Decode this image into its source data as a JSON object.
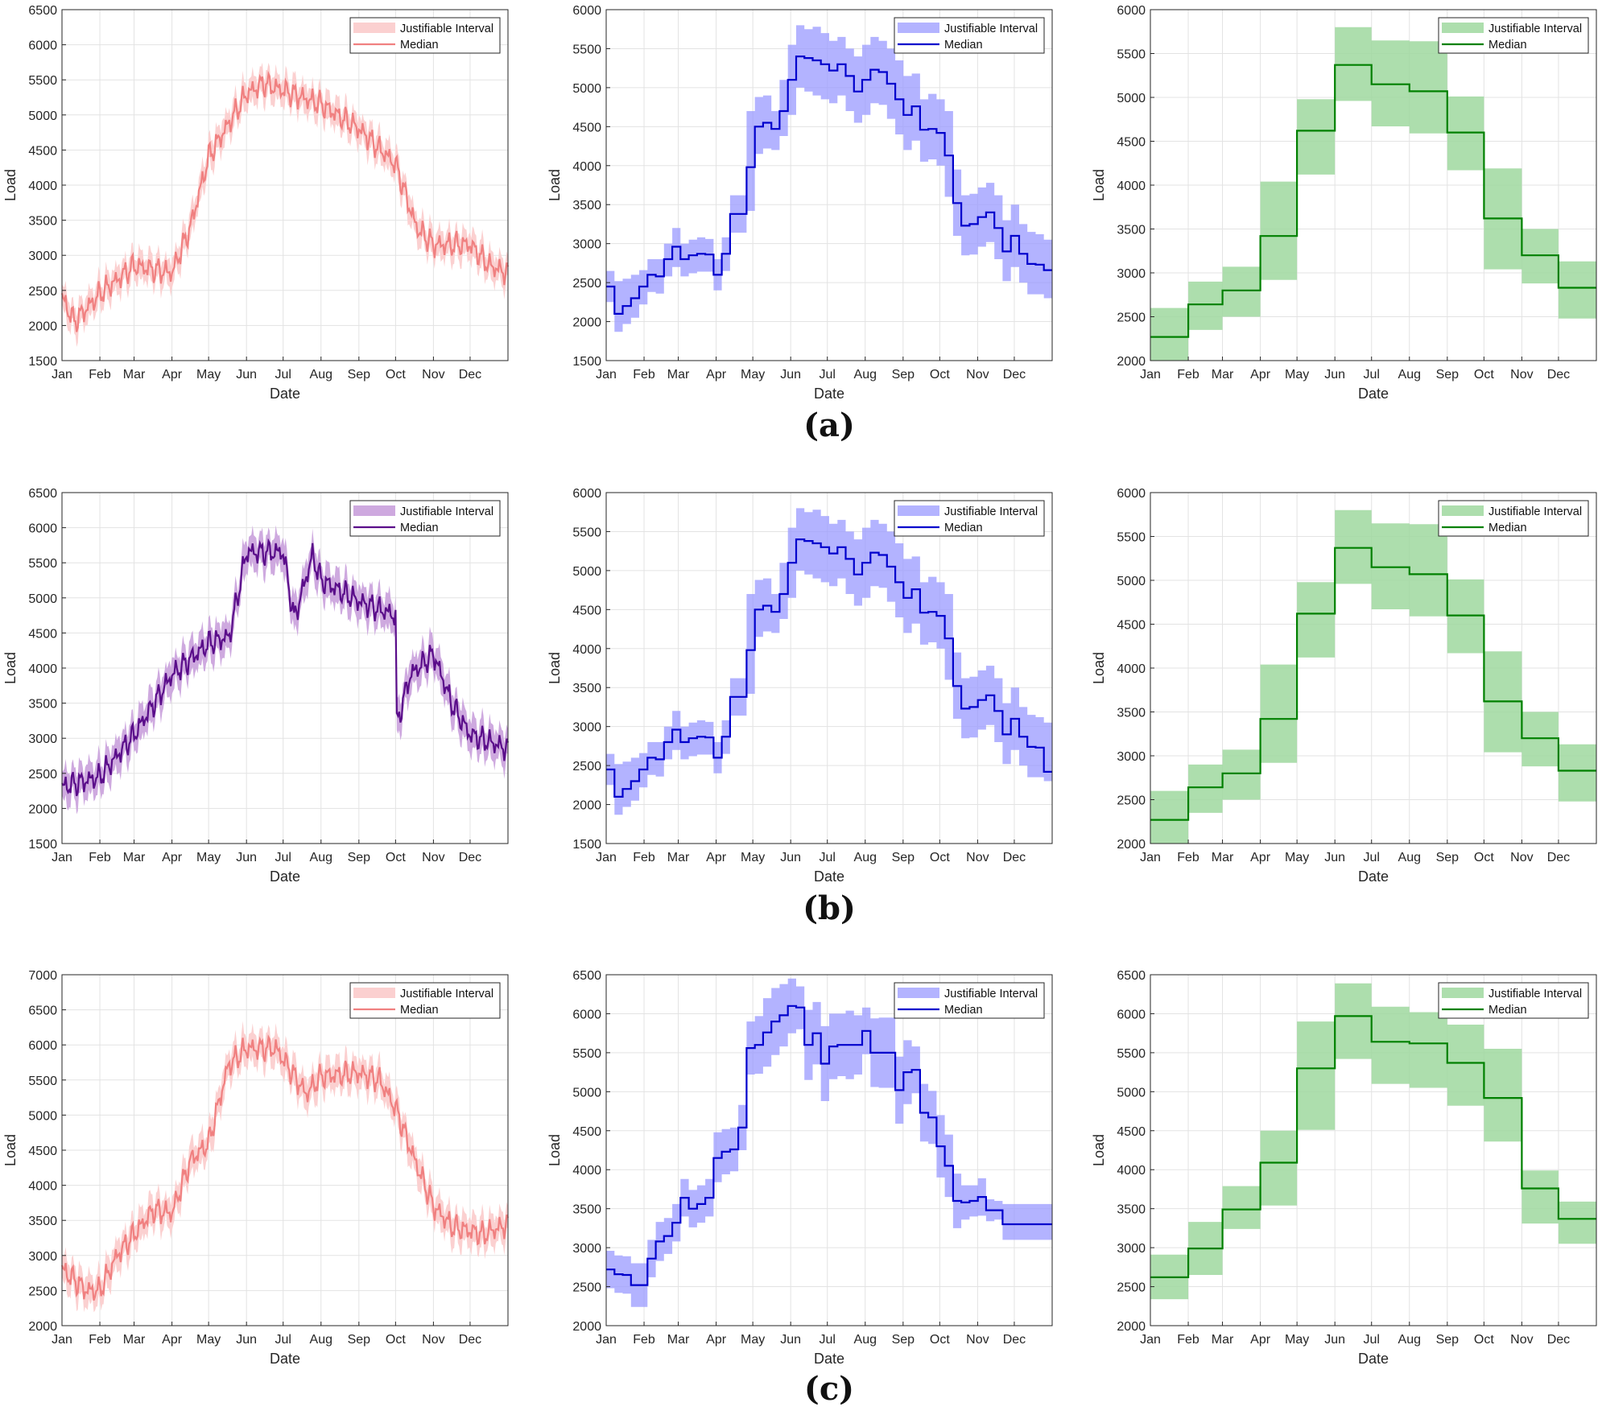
{
  "common": {
    "month_labels": [
      "Jan",
      "Feb",
      "Mar",
      "Apr",
      "May",
      "Jun",
      "Jul",
      "Aug",
      "Sep",
      "Oct",
      "Nov",
      "Dec"
    ],
    "xlabel": "Date",
    "ylabel": "Load",
    "legend_band": "Justifiable Interval",
    "legend_line": "Median",
    "legend_position": "top-right",
    "grid": true
  },
  "captions": [
    "(a)",
    "(b)",
    "(c)"
  ],
  "chart_data": [
    {
      "type": "line",
      "row": 0,
      "col": 0,
      "resolution": "daily",
      "ylim": [
        1500,
        6500
      ],
      "yticks": [
        1500,
        2000,
        2500,
        3000,
        3500,
        4000,
        4500,
        5000,
        5500,
        6000,
        6500
      ],
      "line_color": "#f08080",
      "band_color": "#fbd0d0",
      "band_opacity": 1,
      "median_anchors": [
        [
          0,
          2400
        ],
        [
          10,
          2050
        ],
        [
          31,
          2450
        ],
        [
          59,
          2850
        ],
        [
          90,
          2750
        ],
        [
          105,
          3400
        ],
        [
          120,
          4400
        ],
        [
          151,
          5300
        ],
        [
          165,
          5450
        ],
        [
          181,
          5350
        ],
        [
          212,
          5150
        ],
        [
          243,
          4800
        ],
        [
          273,
          4300
        ],
        [
          290,
          3400
        ],
        [
          304,
          3150
        ],
        [
          334,
          3150
        ],
        [
          350,
          2850
        ],
        [
          365,
          2750
        ]
      ],
      "band_halfwidth": 180
    },
    {
      "type": "line",
      "row": 0,
      "col": 1,
      "resolution": "weekly",
      "ylim": [
        1500,
        6000
      ],
      "yticks": [
        1500,
        2000,
        2500,
        3000,
        3500,
        4000,
        4500,
        5000,
        5500,
        6000
      ],
      "line_color": "#0000cc",
      "band_color": "#9999ff",
      "band_opacity": 0.75,
      "median_weekly": [
        2450,
        2100,
        2200,
        2300,
        2450,
        2600,
        2580,
        2800,
        2960,
        2800,
        2850,
        2870,
        2860,
        2600,
        2870,
        3380,
        3380,
        3980,
        4500,
        4550,
        4470,
        4700,
        5100,
        5400,
        5380,
        5350,
        5300,
        5220,
        5300,
        5150,
        4950,
        5100,
        5230,
        5200,
        5050,
        4850,
        4650,
        4760,
        4460,
        4470,
        4420,
        4130,
        3520,
        3230,
        3250,
        3340,
        3400,
        3200,
        2900,
        3100,
        2870,
        2740,
        2730,
        2660
      ],
      "band_upper": [
        2650,
        2520,
        2550,
        2600,
        2660,
        2800,
        2800,
        3000,
        3200,
        3000,
        3050,
        3080,
        3060,
        2800,
        3080,
        3620,
        3620,
        4700,
        4880,
        4900,
        4700,
        5100,
        5550,
        5800,
        5750,
        5780,
        5700,
        5600,
        5650,
        5500,
        5400,
        5550,
        5650,
        5600,
        5500,
        5350,
        5150,
        5180,
        4850,
        4920,
        4850,
        4700,
        3950,
        3620,
        3640,
        3720,
        3780,
        3620,
        3300,
        3500,
        3250,
        3150,
        3120,
        3050
      ],
      "band_lower": [
        2250,
        1870,
        1970,
        2050,
        2220,
        2380,
        2360,
        2580,
        2700,
        2580,
        2620,
        2640,
        2640,
        2400,
        2650,
        3140,
        3140,
        3420,
        4150,
        4220,
        4200,
        4380,
        4650,
        5000,
        4950,
        4900,
        4850,
        4800,
        4900,
        4700,
        4550,
        4650,
        4800,
        4780,
        4600,
        4400,
        4200,
        4320,
        4050,
        4080,
        4000,
        3600,
        3100,
        2850,
        2860,
        2960,
        3020,
        2800,
        2520,
        2700,
        2500,
        2350,
        2350,
        2300
      ]
    },
    {
      "type": "line",
      "row": 0,
      "col": 2,
      "resolution": "monthly",
      "ylim": [
        2000,
        6000
      ],
      "yticks": [
        2000,
        2500,
        3000,
        3500,
        4000,
        4500,
        5000,
        5500,
        6000
      ],
      "line_color": "#008000",
      "band_color": "#9fd89f",
      "band_opacity": 0.85,
      "median_monthly": [
        2270,
        2640,
        2800,
        3420,
        4620,
        5370,
        5150,
        5070,
        4600,
        3620,
        3200,
        2830
      ],
      "band_upper": [
        2600,
        2900,
        3070,
        4040,
        4980,
        5800,
        5650,
        5640,
        5010,
        4190,
        3500,
        3130
      ],
      "band_lower": [
        1980,
        2350,
        2500,
        2920,
        4120,
        4960,
        4670,
        4590,
        4170,
        3040,
        2880,
        2480
      ]
    },
    {
      "type": "line",
      "row": 1,
      "col": 0,
      "resolution": "daily",
      "ylim": [
        1500,
        6500
      ],
      "yticks": [
        1500,
        2000,
        2500,
        3000,
        3500,
        4000,
        4500,
        5000,
        5500,
        6000,
        6500
      ],
      "line_color": "#5a0d8a",
      "band_color": "#c9a0dc",
      "band_opacity": 0.9,
      "median_anchors": [
        [
          0,
          2300
        ],
        [
          31,
          2450
        ],
        [
          59,
          3050
        ],
        [
          90,
          3900
        ],
        [
          120,
          4350
        ],
        [
          137,
          4450
        ],
        [
          151,
          5650
        ],
        [
          181,
          5650
        ],
        [
          190,
          4700
        ],
        [
          205,
          5600
        ],
        [
          212,
          5250
        ],
        [
          243,
          4950
        ],
        [
          273,
          4750
        ],
        [
          274,
          3200
        ],
        [
          285,
          3900
        ],
        [
          304,
          4200
        ],
        [
          320,
          3450
        ],
        [
          334,
          3050
        ],
        [
          365,
          2850
        ]
      ],
      "band_halfwidth": 220
    },
    {
      "type": "line",
      "row": 1,
      "col": 1,
      "resolution": "weekly",
      "ylim": [
        1500,
        6000
      ],
      "yticks": [
        1500,
        2000,
        2500,
        3000,
        3500,
        4000,
        4500,
        5000,
        5500,
        6000
      ],
      "line_color": "#0000cc",
      "band_color": "#9999ff",
      "band_opacity": 0.75,
      "median_weekly": [
        2450,
        2100,
        2200,
        2300,
        2450,
        2600,
        2580,
        2800,
        2960,
        2800,
        2850,
        2870,
        2860,
        2600,
        2870,
        3380,
        3380,
        3980,
        4500,
        4550,
        4470,
        4700,
        5100,
        5400,
        5380,
        5350,
        5300,
        5220,
        5300,
        5150,
        4950,
        5100,
        5230,
        5200,
        5050,
        4850,
        4650,
        4760,
        4460,
        4470,
        4420,
        4130,
        3520,
        3230,
        3250,
        3340,
        3400,
        3200,
        2900,
        3100,
        2870,
        2740,
        2730,
        2420
      ],
      "band_upper": [
        2650,
        2520,
        2550,
        2600,
        2660,
        2800,
        2800,
        3000,
        3200,
        3000,
        3050,
        3080,
        3060,
        2800,
        3080,
        3620,
        3620,
        4700,
        4880,
        4900,
        4700,
        5100,
        5550,
        5800,
        5750,
        5780,
        5700,
        5600,
        5650,
        5500,
        5400,
        5550,
        5650,
        5600,
        5500,
        5350,
        5150,
        5180,
        4850,
        4920,
        4850,
        4700,
        3950,
        3620,
        3640,
        3720,
        3780,
        3620,
        3300,
        3500,
        3250,
        3150,
        3120,
        3050
      ],
      "band_lower": [
        2250,
        1870,
        1970,
        2050,
        2220,
        2380,
        2360,
        2580,
        2700,
        2580,
        2620,
        2640,
        2640,
        2400,
        2650,
        3140,
        3140,
        3420,
        4150,
        4220,
        4200,
        4380,
        4650,
        5000,
        4950,
        4900,
        4850,
        4800,
        4900,
        4700,
        4550,
        4650,
        4800,
        4780,
        4600,
        4400,
        4200,
        4320,
        4050,
        4080,
        4000,
        3600,
        3100,
        2850,
        2860,
        2960,
        3020,
        2800,
        2520,
        2700,
        2500,
        2350,
        2350,
        2300
      ]
    },
    {
      "type": "line",
      "row": 1,
      "col": 2,
      "resolution": "monthly",
      "ylim": [
        2000,
        6000
      ],
      "yticks": [
        2000,
        2500,
        3000,
        3500,
        4000,
        4500,
        5000,
        5500,
        6000
      ],
      "line_color": "#008000",
      "band_color": "#9fd89f",
      "band_opacity": 0.85,
      "median_monthly": [
        2270,
        2640,
        2800,
        3420,
        4620,
        5370,
        5150,
        5070,
        4600,
        3620,
        3200,
        2830
      ],
      "band_upper": [
        2600,
        2900,
        3070,
        4040,
        4980,
        5800,
        5650,
        5640,
        5010,
        4190,
        3500,
        3130
      ],
      "band_lower": [
        1980,
        2350,
        2500,
        2920,
        4120,
        4960,
        4670,
        4590,
        4170,
        3040,
        2880,
        2480
      ]
    },
    {
      "type": "line",
      "row": 2,
      "col": 0,
      "resolution": "daily",
      "ylim": [
        2000,
        7000
      ],
      "yticks": [
        2000,
        2500,
        3000,
        3500,
        4000,
        4500,
        5000,
        5500,
        6000,
        6500,
        7000
      ],
      "line_color": "#f08080",
      "band_color": "#fbd0d0",
      "band_opacity": 1,
      "median_anchors": [
        [
          0,
          2800
        ],
        [
          20,
          2500
        ],
        [
          31,
          2500
        ],
        [
          45,
          3000
        ],
        [
          59,
          3300
        ],
        [
          75,
          3650
        ],
        [
          90,
          3600
        ],
        [
          105,
          4350
        ],
        [
          120,
          4600
        ],
        [
          136,
          5700
        ],
        [
          151,
          5950
        ],
        [
          175,
          5950
        ],
        [
          200,
          5300
        ],
        [
          212,
          5550
        ],
        [
          243,
          5600
        ],
        [
          260,
          5500
        ],
        [
          273,
          5100
        ],
        [
          290,
          4300
        ],
        [
          304,
          3700
        ],
        [
          320,
          3400
        ],
        [
          334,
          3350
        ],
        [
          345,
          3300
        ],
        [
          365,
          3450
        ]
      ],
      "band_halfwidth": 200
    },
    {
      "type": "line",
      "row": 2,
      "col": 1,
      "resolution": "weekly",
      "ylim": [
        2000,
        6500
      ],
      "yticks": [
        2000,
        2500,
        3000,
        3500,
        4000,
        4500,
        5000,
        5500,
        6000,
        6500
      ],
      "line_color": "#0000cc",
      "band_color": "#9999ff",
      "band_opacity": 0.75,
      "median_weekly": [
        2720,
        2660,
        2650,
        2520,
        2520,
        2860,
        3080,
        3150,
        3320,
        3640,
        3500,
        3560,
        3640,
        4150,
        4230,
        4260,
        4540,
        5560,
        5600,
        5760,
        5900,
        5980,
        6100,
        6080,
        5600,
        5750,
        5360,
        5580,
        5600,
        5600,
        5600,
        5780,
        5500,
        5500,
        5500,
        5020,
        5250,
        5280,
        4730,
        4670,
        4300,
        4050,
        3600,
        3580,
        3600,
        3650,
        3480,
        3480,
        3300,
        3300,
        3300,
        3300,
        3300,
        3300
      ],
      "band_upper": [
        2960,
        2900,
        2890,
        2800,
        2800,
        3100,
        3330,
        3380,
        3560,
        3880,
        3740,
        3800,
        3880,
        4480,
        4520,
        4540,
        4830,
        5900,
        5970,
        6200,
        6330,
        6380,
        6450,
        6350,
        6050,
        6150,
        5840,
        6000,
        6000,
        6040,
        5980,
        6080,
        5940,
        5950,
        5950,
        5450,
        5660,
        5580,
        5100,
        5010,
        4700,
        4450,
        3950,
        3800,
        3800,
        3890,
        3620,
        3600,
        3560,
        3560,
        3560,
        3560,
        3560,
        3560
      ],
      "band_lower": [
        2480,
        2420,
        2410,
        2240,
        2240,
        2620,
        2830,
        2920,
        3080,
        3400,
        3260,
        3320,
        3400,
        3840,
        3940,
        3980,
        4250,
        5220,
        5230,
        5320,
        5470,
        5580,
        5750,
        5800,
        5150,
        5350,
        4880,
        5160,
        5200,
        5160,
        5220,
        5480,
        5060,
        5050,
        5050,
        4590,
        4840,
        4980,
        4360,
        4330,
        3900,
        3650,
        3250,
        3360,
        3400,
        3410,
        3340,
        3360,
        3100,
        3100,
        3100,
        3100,
        3100,
        3100
      ]
    },
    {
      "type": "line",
      "row": 2,
      "col": 2,
      "resolution": "monthly",
      "ylim": [
        2000,
        6500
      ],
      "yticks": [
        2000,
        2500,
        3000,
        3500,
        4000,
        4500,
        5000,
        5500,
        6000,
        6500
      ],
      "line_color": "#008000",
      "band_color": "#9fd89f",
      "band_opacity": 0.85,
      "median_monthly": [
        2620,
        2990,
        3490,
        4090,
        5300,
        5970,
        5640,
        5620,
        5370,
        4920,
        3760,
        3370
      ],
      "band_upper": [
        2910,
        3330,
        3790,
        4500,
        5900,
        6390,
        6090,
        6020,
        5860,
        5550,
        3990,
        3590
      ],
      "band_lower": [
        2340,
        2650,
        3240,
        3540,
        4510,
        5420,
        5100,
        5050,
        4820,
        4360,
        3310,
        3050
      ]
    }
  ]
}
